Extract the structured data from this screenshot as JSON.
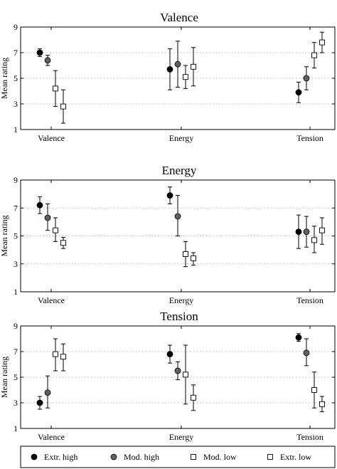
{
  "legend": [
    {
      "label": "Extr. high",
      "marker": "circle",
      "fill": "#000000"
    },
    {
      "label": "Mod. high",
      "marker": "circle",
      "fill": "#606060"
    },
    {
      "label": "Mod. low",
      "marker": "square",
      "fill": "#ffffff"
    },
    {
      "label": "Extr. low",
      "marker": "square",
      "fill": "#ffffff"
    }
  ],
  "chart_data": [
    {
      "type": "scatter",
      "title": "Valence",
      "ylabel": "Mean rating",
      "xlabel": "",
      "categories": [
        "Valence",
        "Energy",
        "Tension"
      ],
      "ylim": [
        1,
        9
      ],
      "yticks": [
        1,
        3,
        5,
        7,
        9
      ],
      "grid": "horizontal dotted",
      "error_bars": true,
      "series": [
        {
          "name": "Extr. high",
          "values": [
            7.0,
            5.7,
            3.9
          ],
          "lower": [
            6.7,
            4.1,
            3.1
          ],
          "upper": [
            7.3,
            7.3,
            4.7
          ]
        },
        {
          "name": "Mod. high",
          "values": [
            6.4,
            6.1,
            5.0
          ],
          "lower": [
            6.0,
            4.3,
            4.1
          ],
          "upper": [
            6.8,
            7.9,
            5.9
          ]
        },
        {
          "name": "Mod. low",
          "values": [
            4.2,
            5.1,
            6.8
          ],
          "lower": [
            2.8,
            4.2,
            5.8
          ],
          "upper": [
            5.6,
            6.0,
            7.8
          ]
        },
        {
          "name": "Extr. low",
          "values": [
            2.8,
            5.9,
            7.8
          ],
          "lower": [
            1.5,
            4.4,
            7.0
          ],
          "upper": [
            4.1,
            7.4,
            8.6
          ]
        }
      ]
    },
    {
      "type": "scatter",
      "title": "Energy",
      "ylabel": "Mean rating",
      "xlabel": "",
      "categories": [
        "Valence",
        "Energy",
        "Tension"
      ],
      "ylim": [
        1,
        9
      ],
      "yticks": [
        1,
        3,
        5,
        7,
        9
      ],
      "grid": "horizontal dotted",
      "error_bars": true,
      "series": [
        {
          "name": "Extr. high",
          "values": [
            7.2,
            7.9,
            5.3
          ],
          "lower": [
            6.6,
            7.3,
            4.1
          ],
          "upper": [
            7.8,
            8.5,
            6.5
          ]
        },
        {
          "name": "Mod. high",
          "values": [
            6.3,
            6.4,
            5.3
          ],
          "lower": [
            5.4,
            5.0,
            4.2
          ],
          "upper": [
            7.3,
            7.9,
            6.4
          ]
        },
        {
          "name": "Mod. low",
          "values": [
            5.4,
            3.7,
            4.7
          ],
          "lower": [
            4.6,
            2.8,
            3.8
          ],
          "upper": [
            6.3,
            4.6,
            5.7
          ]
        },
        {
          "name": "Extr. low",
          "values": [
            4.5,
            3.4,
            5.4
          ],
          "lower": [
            4.1,
            2.9,
            4.4
          ],
          "upper": [
            4.9,
            3.8,
            6.3
          ]
        }
      ]
    },
    {
      "type": "scatter",
      "title": "Tension",
      "ylabel": "Mean rating",
      "xlabel": "",
      "categories": [
        "Valence",
        "Energy",
        "Tension"
      ],
      "ylim": [
        1,
        9
      ],
      "yticks": [
        1,
        3,
        5,
        7,
        9
      ],
      "grid": "horizontal dotted",
      "error_bars": true,
      "series": [
        {
          "name": "Extr. high",
          "values": [
            3.0,
            6.8,
            8.1
          ],
          "lower": [
            2.5,
            6.1,
            7.8
          ],
          "upper": [
            3.5,
            7.5,
            8.4
          ]
        },
        {
          "name": "Mod. high",
          "values": [
            3.8,
            5.5,
            6.9
          ],
          "lower": [
            2.6,
            4.8,
            5.9
          ],
          "upper": [
            5.1,
            6.2,
            8.0
          ]
        },
        {
          "name": "Mod. low",
          "values": [
            6.8,
            5.2,
            4.0
          ],
          "lower": [
            5.5,
            2.9,
            2.6
          ],
          "upper": [
            8.0,
            7.5,
            5.4
          ]
        },
        {
          "name": "Extr. low",
          "values": [
            6.6,
            3.4,
            2.9
          ],
          "lower": [
            5.5,
            2.4,
            2.3
          ],
          "upper": [
            7.6,
            4.4,
            3.5
          ]
        }
      ]
    }
  ]
}
